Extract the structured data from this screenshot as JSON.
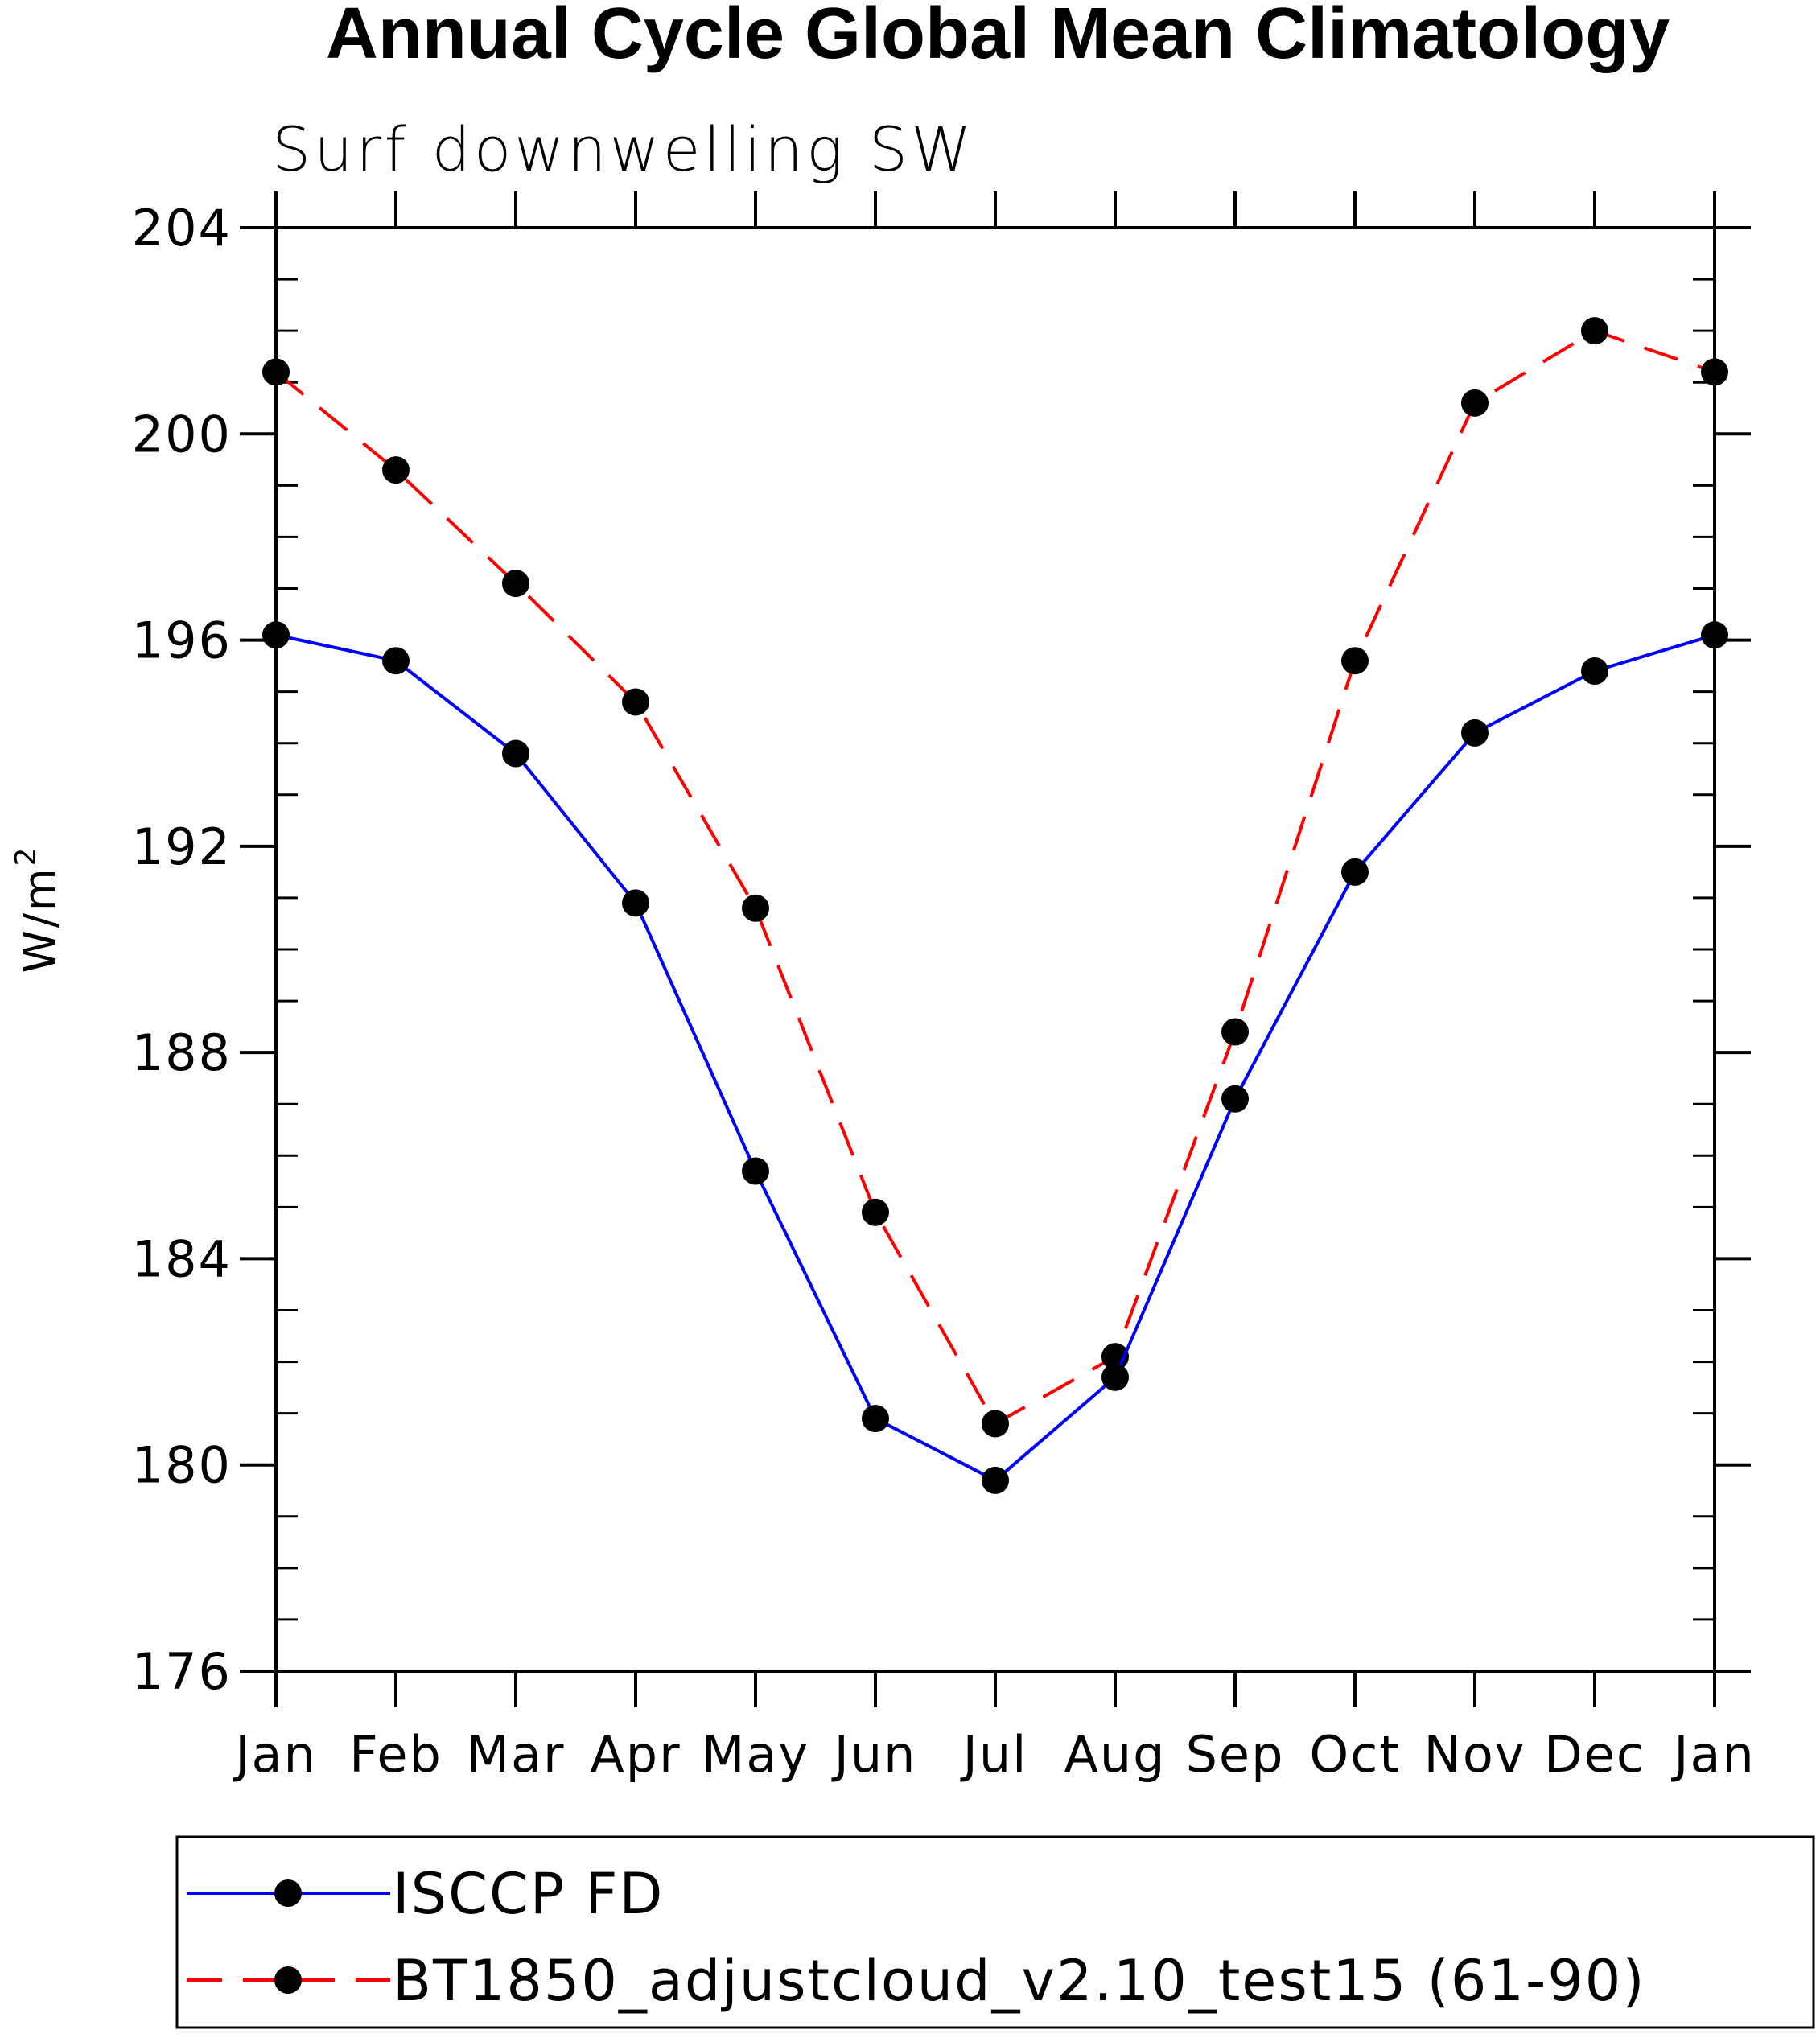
{
  "chart_data": {
    "type": "line",
    "title": "Annual Cycle Global Mean Climatology",
    "subtitle": "Surf downwelling SW",
    "xlabel": "",
    "ylabel": "W/m",
    "ylabel_superscript": "2",
    "categories": [
      "Jan",
      "Feb",
      "Mar",
      "Apr",
      "May",
      "Jun",
      "Jul",
      "Aug",
      "Sep",
      "Oct",
      "Nov",
      "Dec",
      "Jan"
    ],
    "ylim": [
      176,
      204
    ],
    "yticks": [
      176,
      180,
      184,
      188,
      192,
      196,
      200,
      204
    ],
    "y_minor_step": 1,
    "grid": false,
    "legend_position": "bottom",
    "series": [
      {
        "name": "ISCCP FD",
        "color": "#0000ff",
        "line_style": "solid",
        "marker": "filled-circle",
        "values": [
          196.1,
          195.6,
          193.8,
          190.9,
          185.7,
          180.9,
          179.7,
          181.7,
          187.1,
          191.5,
          194.2,
          195.4,
          196.1
        ]
      },
      {
        "name": "BT1850_adjustcloud_v2.10_test15 (61-90)",
        "color": "#ff0000",
        "line_style": "dashed",
        "marker": "filled-circle",
        "values": [
          201.2,
          199.3,
          197.1,
          194.8,
          190.8,
          184.9,
          180.8,
          182.1,
          188.4,
          195.6,
          200.6,
          202.0,
          201.2
        ]
      }
    ]
  }
}
